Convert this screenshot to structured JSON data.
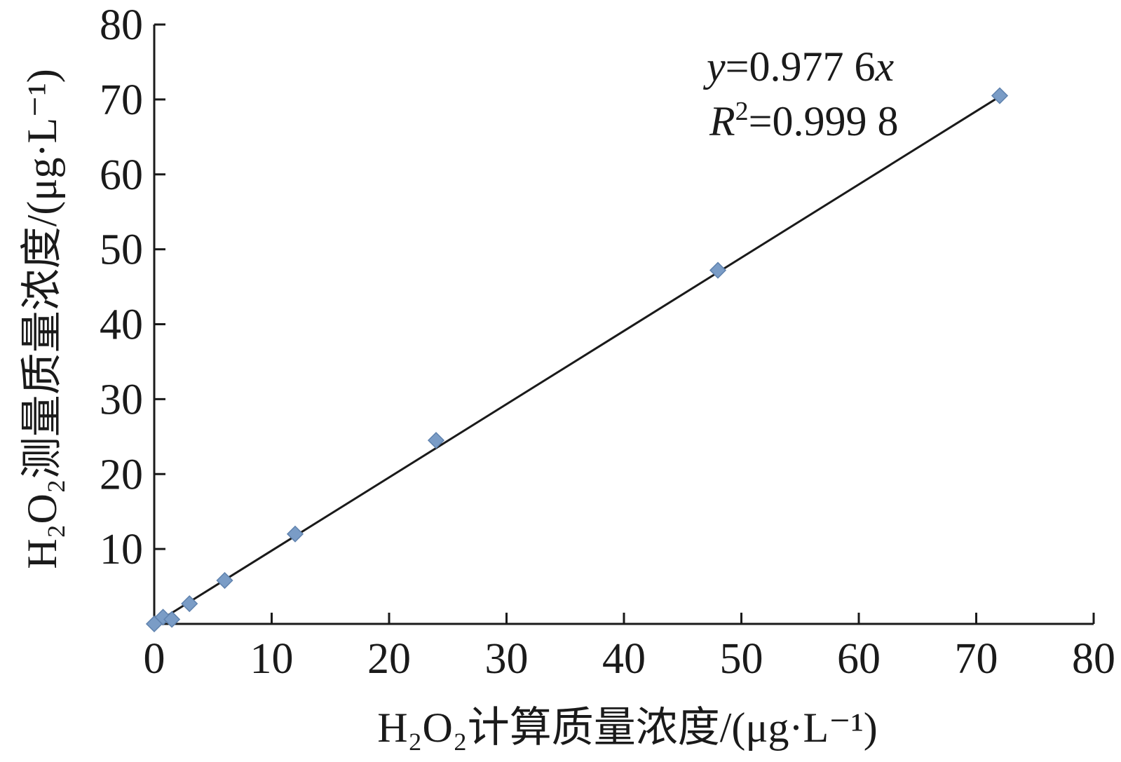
{
  "chart_data": {
    "type": "scatter",
    "xlabel": "H₂O₂计算质量浓度/(μg·L⁻¹)",
    "ylabel": "H₂O₂测量质量浓度/(μg·L⁻¹)",
    "xlim": [
      0,
      80
    ],
    "ylim": [
      0,
      80
    ],
    "x_ticks": [
      0,
      10,
      20,
      30,
      40,
      50,
      60,
      70,
      80
    ],
    "y_ticks": [
      10,
      20,
      30,
      40,
      50,
      60,
      70,
      80
    ],
    "x_tick_labels": [
      "0",
      "10",
      "20",
      "30",
      "40",
      "50",
      "60",
      "70",
      "80"
    ],
    "y_tick_labels": [
      "10",
      "20",
      "30",
      "40",
      "50",
      "60",
      "70",
      "80"
    ],
    "grid": false,
    "marker_color": "#7a9cc6",
    "series": [
      {
        "x": [
          0.0,
          0.75,
          1.5,
          3.0,
          6.0,
          12.0,
          24.0,
          48.0,
          72.0
        ],
        "y": [
          0.0,
          0.9,
          0.6,
          2.7,
          5.8,
          12.0,
          24.5,
          47.2,
          70.5
        ]
      }
    ],
    "trendline": {
      "slope": 0.9776,
      "intercept": 0,
      "x_range": [
        0,
        72
      ]
    },
    "annotations": {
      "equation": {
        "var_y": "y",
        "eq_text": "=0.977 6",
        "var_x": "x"
      },
      "r_squared": {
        "var_r": "R",
        "sup": "2",
        "eq_text": "=0.999 8"
      }
    }
  }
}
